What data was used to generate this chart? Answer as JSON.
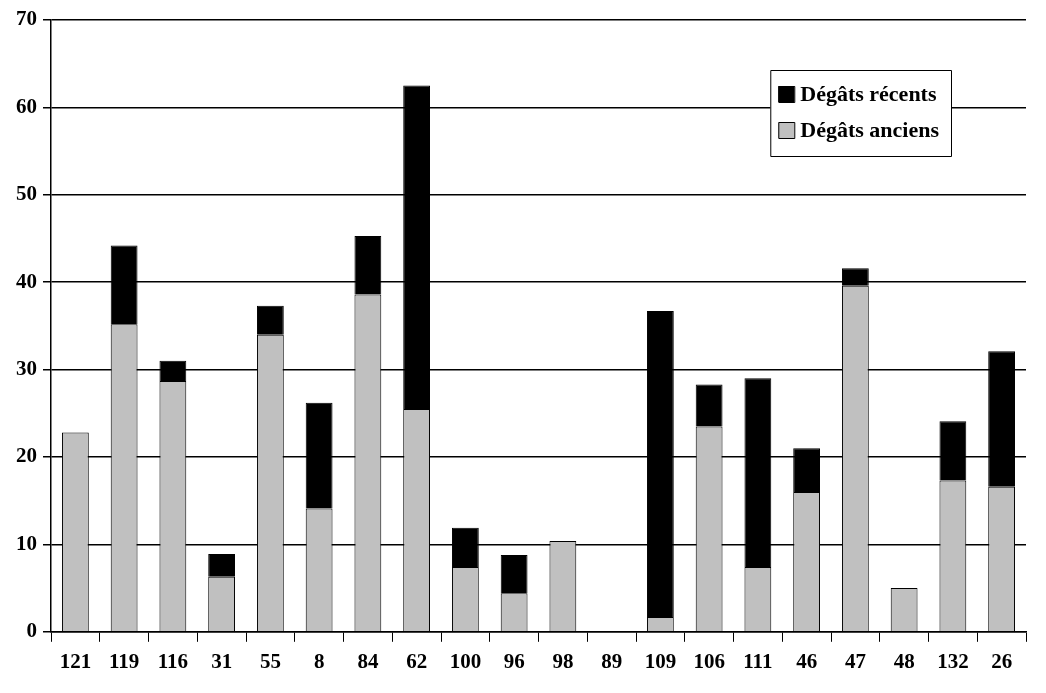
{
  "chart_data": {
    "type": "bar",
    "stacked": true,
    "categories": [
      "121",
      "119",
      "116",
      "31",
      "55",
      "8",
      "84",
      "62",
      "100",
      "96",
      "98",
      "89",
      "109",
      "106",
      "111",
      "46",
      "47",
      "48",
      "132",
      "26"
    ],
    "series": [
      {
        "name": "Dégâts anciens",
        "color": "#c0c0c0",
        "values": [
          22.8,
          35.2,
          28.7,
          6.3,
          34,
          14.1,
          38.6,
          25.5,
          7.4,
          4.4,
          10.4,
          0,
          1.7,
          23.5,
          7.4,
          16,
          39.6,
          5,
          17.3,
          16.6
        ]
      },
      {
        "name": "Dégâts récents",
        "color": "#000000",
        "values": [
          0,
          9,
          2.3,
          2.6,
          3.3,
          12.1,
          6.7,
          37,
          4.5,
          4.4,
          0,
          0,
          35,
          4.8,
          21.6,
          5,
          2,
          0,
          6.8,
          15.5
        ]
      }
    ],
    "ylim": [
      0,
      70
    ],
    "yticks": [
      0,
      10,
      20,
      30,
      40,
      50,
      60,
      70
    ],
    "grid": "y",
    "legend": "top right"
  }
}
